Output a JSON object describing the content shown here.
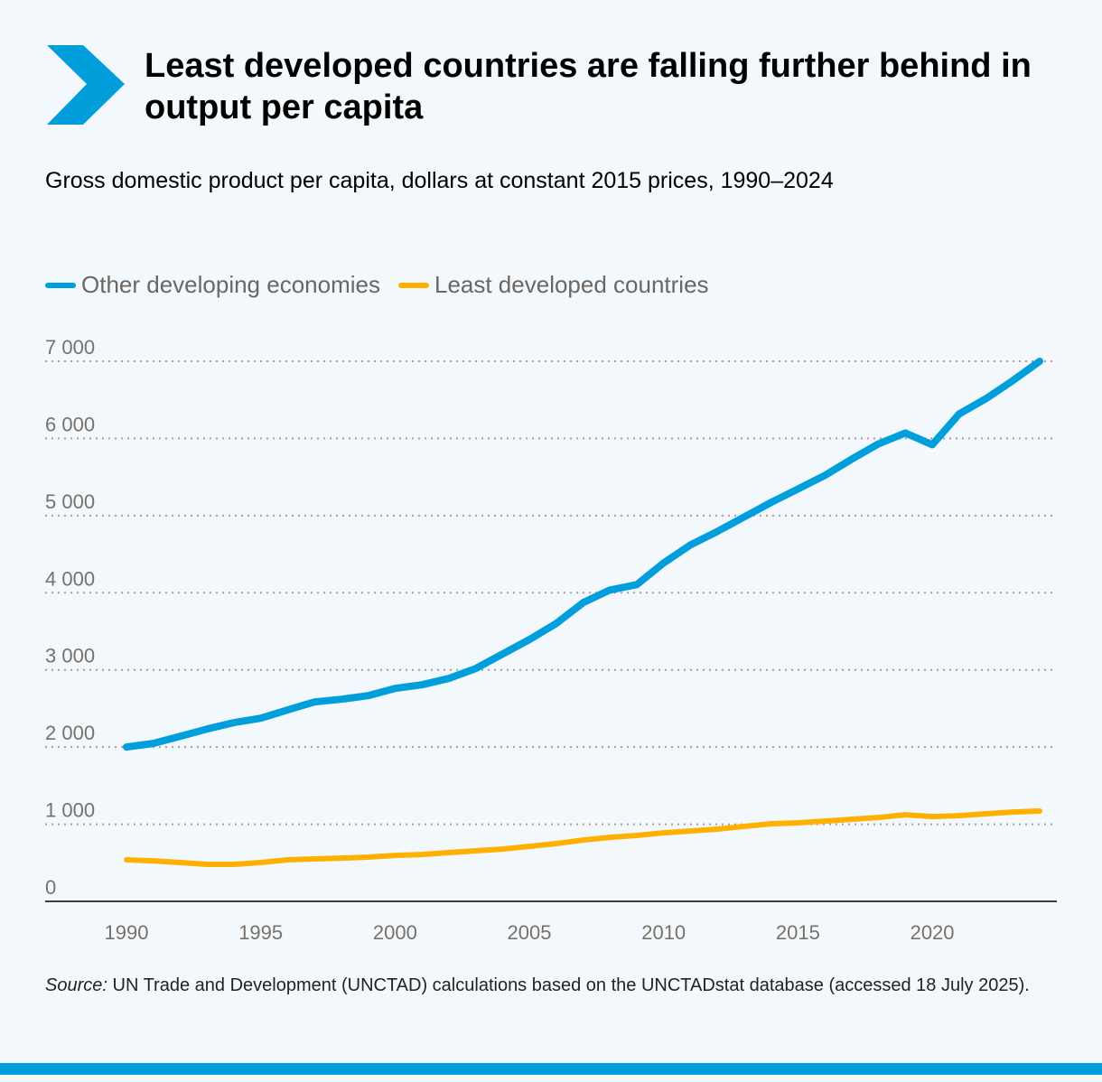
{
  "header": {
    "title": "Least developed countries are falling further behind in output per capita",
    "logo_icon": "chevron-right-icon",
    "accent_color": "#009edb"
  },
  "chart_data": {
    "type": "line",
    "title": "Least developed countries are falling further behind in output per capita",
    "subtitle": "Gross domestic product per capita, dollars at constant 2015 prices, 1990–2024",
    "xlabel": "",
    "ylabel": "",
    "ylim": [
      0,
      7000
    ],
    "xlim": [
      1990,
      2024
    ],
    "grid": "horizontal dotted",
    "legend": "top-left",
    "y_ticks": [
      0,
      1000,
      2000,
      3000,
      4000,
      5000,
      6000,
      7000
    ],
    "y_tick_labels": [
      "0",
      "1 000",
      "2 000",
      "3 000",
      "4 000",
      "5 000",
      "6 000",
      "7 000"
    ],
    "x_ticks": [
      1990,
      1995,
      2000,
      2005,
      2010,
      2015,
      2020
    ],
    "x_tick_labels": [
      "1990",
      "1995",
      "2000",
      "2005",
      "2010",
      "2015",
      "2020"
    ],
    "x": [
      1990,
      1991,
      1992,
      1993,
      1994,
      1995,
      1996,
      1997,
      1998,
      1999,
      2000,
      2001,
      2002,
      2003,
      2004,
      2005,
      2006,
      2007,
      2008,
      2009,
      2010,
      2011,
      2012,
      2013,
      2014,
      2015,
      2016,
      2017,
      2018,
      2019,
      2020,
      2021,
      2022,
      2023,
      2024
    ],
    "series": [
      {
        "name": "Other developing economies",
        "color": "#009edb",
        "values": [
          2000,
          2047,
          2140,
          2234,
          2316,
          2374,
          2480,
          2585,
          2620,
          2667,
          2760,
          2807,
          2889,
          3018,
          3205,
          3392,
          3602,
          3871,
          4035,
          4105,
          4386,
          4620,
          4795,
          4982,
          5170,
          5345,
          5520,
          5731,
          5930,
          6070,
          5918,
          6316,
          6515,
          6750,
          7000
        ]
      },
      {
        "name": "Least developed countries",
        "color": "#ffb000",
        "values": [
          538,
          526,
          503,
          480,
          480,
          503,
          538,
          550,
          561,
          573,
          596,
          608,
          632,
          655,
          678,
          713,
          749,
          795,
          830,
          854,
          889,
          912,
          936,
          971,
          1006,
          1018,
          1041,
          1064,
          1088,
          1123,
          1099,
          1111,
          1135,
          1158,
          1170
        ]
      }
    ]
  },
  "footer": {
    "source_label": "Source:",
    "source_text": " UN Trade and Development (UNCTAD) calculations based on the UNCTADstat database (accessed 18 July 2025)."
  }
}
